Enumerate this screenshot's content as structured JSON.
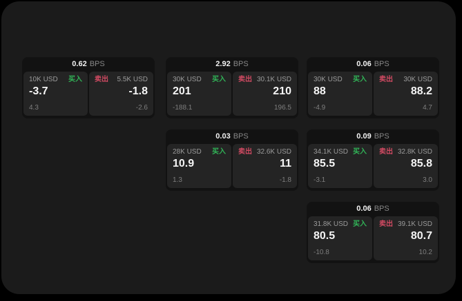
{
  "labels": {
    "bps_unit": "BPS",
    "buy": "买入",
    "sell": "卖出"
  },
  "colors": {
    "background": "#000000",
    "surface": "#1b1b1b",
    "card_bg": "#121212",
    "panel_bg": "#242424",
    "buy_green": "#31b357",
    "sell_red": "#d04a62"
  },
  "cards": [
    {
      "bps": "0.62",
      "buy": {
        "amount": "10K USD",
        "price": "-3.7",
        "delta": "4.3"
      },
      "sell": {
        "amount": "5.5K USD",
        "price": "-1.8",
        "delta": "-2.6"
      }
    },
    {
      "bps": "2.92",
      "buy": {
        "amount": "30K USD",
        "price": "201",
        "delta": "-188.1"
      },
      "sell": {
        "amount": "30.1K USD",
        "price": "210",
        "delta": "196.5"
      }
    },
    {
      "bps": "0.06",
      "buy": {
        "amount": "30K USD",
        "price": "88",
        "delta": "-4.9"
      },
      "sell": {
        "amount": "30K USD",
        "price": "88.2",
        "delta": "4.7"
      }
    },
    {
      "bps": "0.03",
      "buy": {
        "amount": "28K USD",
        "price": "10.9",
        "delta": "1.3"
      },
      "sell": {
        "amount": "32.6K USD",
        "price": "11",
        "delta": "-1.8"
      }
    },
    {
      "bps": "0.09",
      "buy": {
        "amount": "34.1K USD",
        "price": "85.5",
        "delta": "-3.1"
      },
      "sell": {
        "amount": "32.8K USD",
        "price": "85.8",
        "delta": "3.0"
      }
    },
    {
      "bps": "0.06",
      "buy": {
        "amount": "31.8K USD",
        "price": "80.5",
        "delta": "-10.8"
      },
      "sell": {
        "amount": "39.1K USD",
        "price": "80.7",
        "delta": "10.2"
      }
    }
  ]
}
